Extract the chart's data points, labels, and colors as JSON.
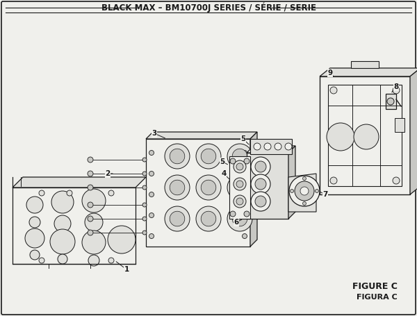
{
  "title": "BLACK MAX – BM10700J SERIES / SÉRIE / SERIE",
  "figure_label": "FIGURE C",
  "figure_label2": "FIGURA C",
  "bg_color": "#f0f0ec",
  "line_color": "#1a1a1a",
  "fill_light": "#f0f0ec",
  "fill_mid": "#e0e0dc",
  "fill_dark": "#c8c8c4",
  "title_fontsize": 8.5,
  "label_fontsize": 7.5,
  "figure_label_fontsize": 9
}
